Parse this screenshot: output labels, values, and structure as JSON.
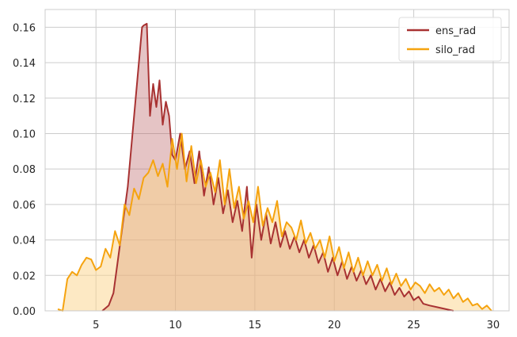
{
  "chart_data": {
    "type": "area",
    "title": "",
    "xlabel": "",
    "ylabel": "",
    "xlim": [
      1.8,
      31.0
    ],
    "ylim": [
      0.0,
      0.17
    ],
    "x_ticks": [
      5,
      10,
      15,
      20,
      25,
      30
    ],
    "y_ticks": [
      0.0,
      0.02,
      0.04,
      0.06,
      0.08,
      0.1,
      0.12,
      0.14,
      0.16
    ],
    "x_tick_labels": [
      "5",
      "10",
      "15",
      "20",
      "25",
      "30"
    ],
    "y_tick_labels": [
      "0.00",
      "0.02",
      "0.04",
      "0.06",
      "0.08",
      "0.10",
      "0.12",
      "0.14",
      "0.16"
    ],
    "grid": true,
    "legend_position": "top-right",
    "series": [
      {
        "name": "ens_rad",
        "color": "#a83232",
        "fill": "#b5565a",
        "x": [
          5.4,
          5.8,
          6.1,
          6.4,
          6.7,
          7.0,
          7.2,
          7.4,
          7.6,
          7.8,
          7.9,
          8.0,
          8.2,
          8.4,
          8.6,
          8.8,
          9.0,
          9.2,
          9.4,
          9.6,
          9.8,
          10.0,
          10.3,
          10.6,
          10.9,
          11.2,
          11.5,
          11.8,
          12.1,
          12.4,
          12.7,
          13.0,
          13.3,
          13.6,
          13.9,
          14.2,
          14.5,
          14.8,
          15.1,
          15.4,
          15.7,
          16.0,
          16.3,
          16.6,
          16.9,
          17.2,
          17.5,
          17.8,
          18.1,
          18.4,
          18.7,
          19.0,
          19.3,
          19.6,
          19.9,
          20.2,
          20.5,
          20.8,
          21.1,
          21.4,
          21.7,
          22.0,
          22.3,
          22.6,
          22.9,
          23.2,
          23.5,
          23.8,
          24.1,
          24.4,
          24.7,
          25.0,
          25.3,
          25.6,
          26.0,
          26.5,
          27.0,
          27.5
        ],
        "y": [
          0.0,
          0.003,
          0.01,
          0.03,
          0.05,
          0.07,
          0.09,
          0.11,
          0.13,
          0.15,
          0.16,
          0.161,
          0.162,
          0.11,
          0.128,
          0.115,
          0.13,
          0.105,
          0.118,
          0.11,
          0.088,
          0.085,
          0.1,
          0.08,
          0.09,
          0.072,
          0.09,
          0.065,
          0.081,
          0.06,
          0.075,
          0.055,
          0.068,
          0.05,
          0.062,
          0.045,
          0.07,
          0.03,
          0.06,
          0.04,
          0.055,
          0.038,
          0.05,
          0.036,
          0.045,
          0.035,
          0.042,
          0.033,
          0.04,
          0.03,
          0.037,
          0.027,
          0.033,
          0.022,
          0.03,
          0.02,
          0.028,
          0.018,
          0.025,
          0.017,
          0.023,
          0.015,
          0.02,
          0.012,
          0.018,
          0.011,
          0.016,
          0.009,
          0.013,
          0.008,
          0.011,
          0.006,
          0.008,
          0.004,
          0.003,
          0.002,
          0.001,
          0.0
        ]
      },
      {
        "name": "silo_rad",
        "color": "#f5a30f",
        "fill": "#fbd38a",
        "x": [
          2.6,
          2.9,
          3.2,
          3.5,
          3.8,
          4.1,
          4.4,
          4.7,
          5.0,
          5.3,
          5.6,
          5.9,
          6.2,
          6.5,
          6.8,
          7.1,
          7.4,
          7.7,
          8.0,
          8.3,
          8.6,
          8.9,
          9.2,
          9.5,
          9.8,
          10.1,
          10.4,
          10.7,
          11.0,
          11.3,
          11.6,
          11.9,
          12.2,
          12.5,
          12.8,
          13.1,
          13.4,
          13.7,
          14.0,
          14.3,
          14.6,
          14.9,
          15.2,
          15.5,
          15.8,
          16.1,
          16.4,
          16.7,
          17.0,
          17.3,
          17.6,
          17.9,
          18.2,
          18.5,
          18.8,
          19.1,
          19.4,
          19.7,
          20.0,
          20.3,
          20.6,
          20.9,
          21.2,
          21.5,
          21.8,
          22.1,
          22.4,
          22.7,
          23.0,
          23.3,
          23.6,
          23.9,
          24.2,
          24.5,
          24.8,
          25.1,
          25.4,
          25.7,
          26.0,
          26.3,
          26.6,
          26.9,
          27.2,
          27.5,
          27.8,
          28.1,
          28.4,
          28.7,
          29.0,
          29.3,
          29.6,
          29.9
        ],
        "y": [
          0.001,
          0.0,
          0.018,
          0.022,
          0.02,
          0.026,
          0.03,
          0.029,
          0.023,
          0.025,
          0.035,
          0.03,
          0.045,
          0.037,
          0.06,
          0.054,
          0.069,
          0.063,
          0.075,
          0.078,
          0.085,
          0.076,
          0.083,
          0.07,
          0.097,
          0.08,
          0.1,
          0.073,
          0.093,
          0.072,
          0.085,
          0.07,
          0.078,
          0.067,
          0.085,
          0.06,
          0.08,
          0.058,
          0.07,
          0.052,
          0.062,
          0.05,
          0.07,
          0.048,
          0.058,
          0.05,
          0.062,
          0.042,
          0.05,
          0.047,
          0.04,
          0.051,
          0.038,
          0.044,
          0.035,
          0.04,
          0.03,
          0.042,
          0.028,
          0.036,
          0.024,
          0.033,
          0.022,
          0.03,
          0.02,
          0.028,
          0.02,
          0.026,
          0.017,
          0.024,
          0.015,
          0.021,
          0.014,
          0.018,
          0.012,
          0.016,
          0.014,
          0.01,
          0.015,
          0.011,
          0.013,
          0.009,
          0.012,
          0.007,
          0.01,
          0.005,
          0.007,
          0.003,
          0.004,
          0.001,
          0.003,
          0.0
        ]
      }
    ]
  }
}
